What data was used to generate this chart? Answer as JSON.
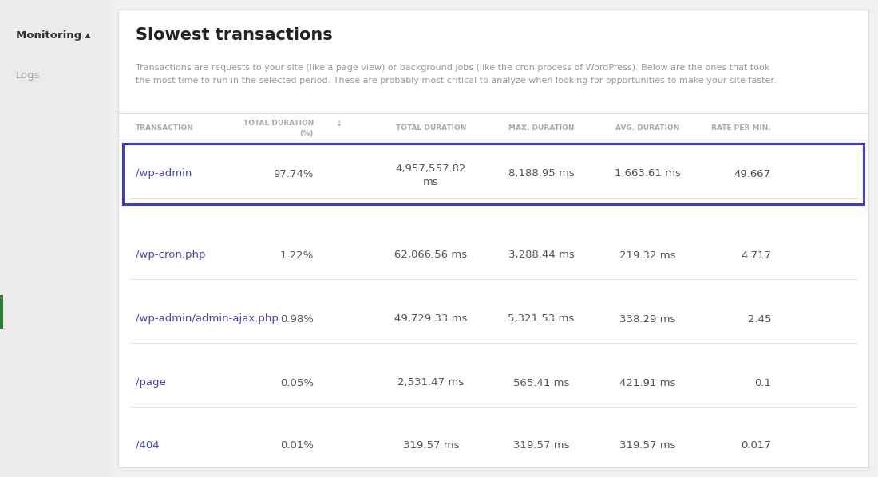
{
  "title": "Slowest transactions",
  "description_line1": "Transactions are requests to your site (like a page view) or background jobs (like the cron process of WordPress). Below are the ones that took",
  "description_line2": "the most time to run in the selected period. These are probably most critical to analyze when looking for opportunities to make your site faster.",
  "sidebar_items": [
    "Monitoring ▴",
    "Logs"
  ],
  "columns": [
    "TRANSACTION",
    "TOTAL DURATION\n(%)",
    "TOTAL DURATION",
    "MAX. DURATION",
    "AVG. DURATION",
    "RATE PER MIN."
  ],
  "col_aligns": [
    "left",
    "right",
    "center",
    "center",
    "center",
    "right"
  ],
  "rows": [
    {
      "transaction": "/wp-admin",
      "total_pct": "97.74%",
      "total_dur": "4,957,557.82\nms",
      "max_dur": "8,188.95 ms",
      "avg_dur": "1,663.61 ms",
      "rate": "49.667",
      "highlight": true
    },
    {
      "transaction": "/wp-cron.php",
      "total_pct": "1.22%",
      "total_dur": "62,066.56 ms",
      "max_dur": "3,288.44 ms",
      "avg_dur": "219.32 ms",
      "rate": "4.717",
      "highlight": false
    },
    {
      "transaction": "/wp-admin/admin-ajax.php",
      "total_pct": "0.98%",
      "total_dur": "49,729.33 ms",
      "max_dur": "5,321.53 ms",
      "avg_dur": "338.29 ms",
      "rate": "2.45",
      "highlight": false
    },
    {
      "transaction": "/page",
      "total_pct": "0.05%",
      "total_dur": "2,531.47 ms",
      "max_dur": "565.41 ms",
      "avg_dur": "421.91 ms",
      "rate": "0.1",
      "highlight": false
    },
    {
      "transaction": "/404",
      "total_pct": "0.01%",
      "total_dur": "319.57 ms",
      "max_dur": "319.57 ms",
      "avg_dur": "319.57 ms",
      "rate": "0.017",
      "highlight": false
    }
  ],
  "bg_color": "#f0f0f0",
  "panel_color": "#ffffff",
  "highlight_border_color": "#3d3dcc",
  "header_text_color": "#aaaaaa",
  "body_text_color": "#555555",
  "link_color": "#4444bb",
  "sidebar_bg": "#ebebeb",
  "divider_color": "#dddddd",
  "title_color": "#222222",
  "desc_color": "#999999",
  "sidebar_text_color": "#333333",
  "sidebar_text_color2": "#aaaaaa",
  "accent_color": "#2e7d32",
  "panel_border_color": "#dddddd"
}
